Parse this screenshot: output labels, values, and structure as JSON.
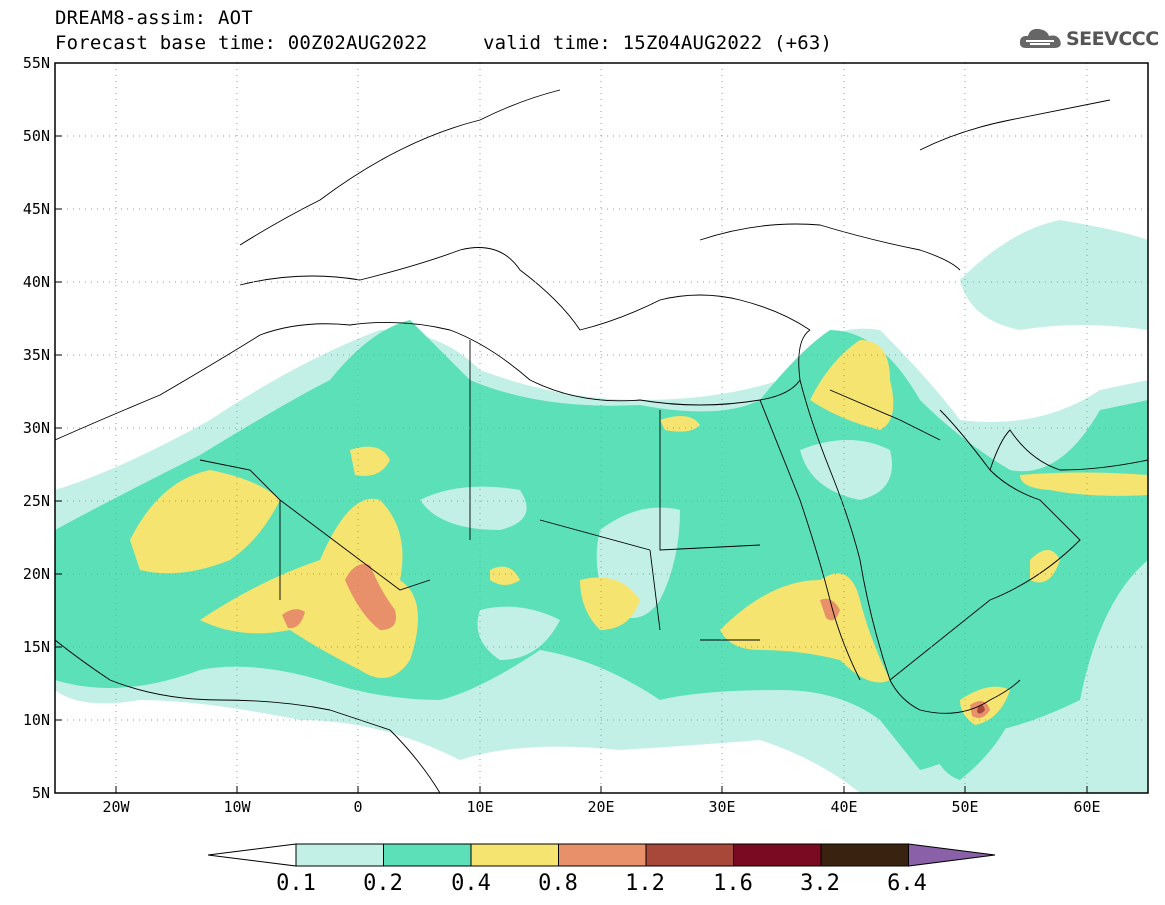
{
  "header": {
    "title": "DREAM8-assim: AOT",
    "base_time": "Forecast base time: 00Z02AUG2022",
    "valid_time": "valid time: 15Z04AUG2022 (+63)"
  },
  "logo": {
    "text": "SEEVCCC",
    "icon": "cloud-icon"
  },
  "map": {
    "lat_labels": [
      "55N",
      "50N",
      "45N",
      "40N",
      "35N",
      "30N",
      "25N",
      "20N",
      "15N",
      "10N",
      "5N"
    ],
    "lon_labels": [
      "20W",
      "10W",
      "0",
      "10E",
      "20E",
      "30E",
      "40E",
      "50E",
      "60E"
    ],
    "lat_range": [
      5,
      55
    ],
    "lon_range": [
      -25,
      65
    ],
    "grid": "dotted"
  },
  "colorbar": {
    "labels": [
      "0.1",
      "0.2",
      "0.4",
      "0.8",
      "1.2",
      "1.6",
      "3.2",
      "6.4"
    ],
    "colors": [
      "#ffffff",
      "#c2f0e6",
      "#5ce0b8",
      "#f5e470",
      "#e8906a",
      "#a8483a",
      "#7a0a22",
      "#3a2210",
      "#8a60a8"
    ]
  }
}
